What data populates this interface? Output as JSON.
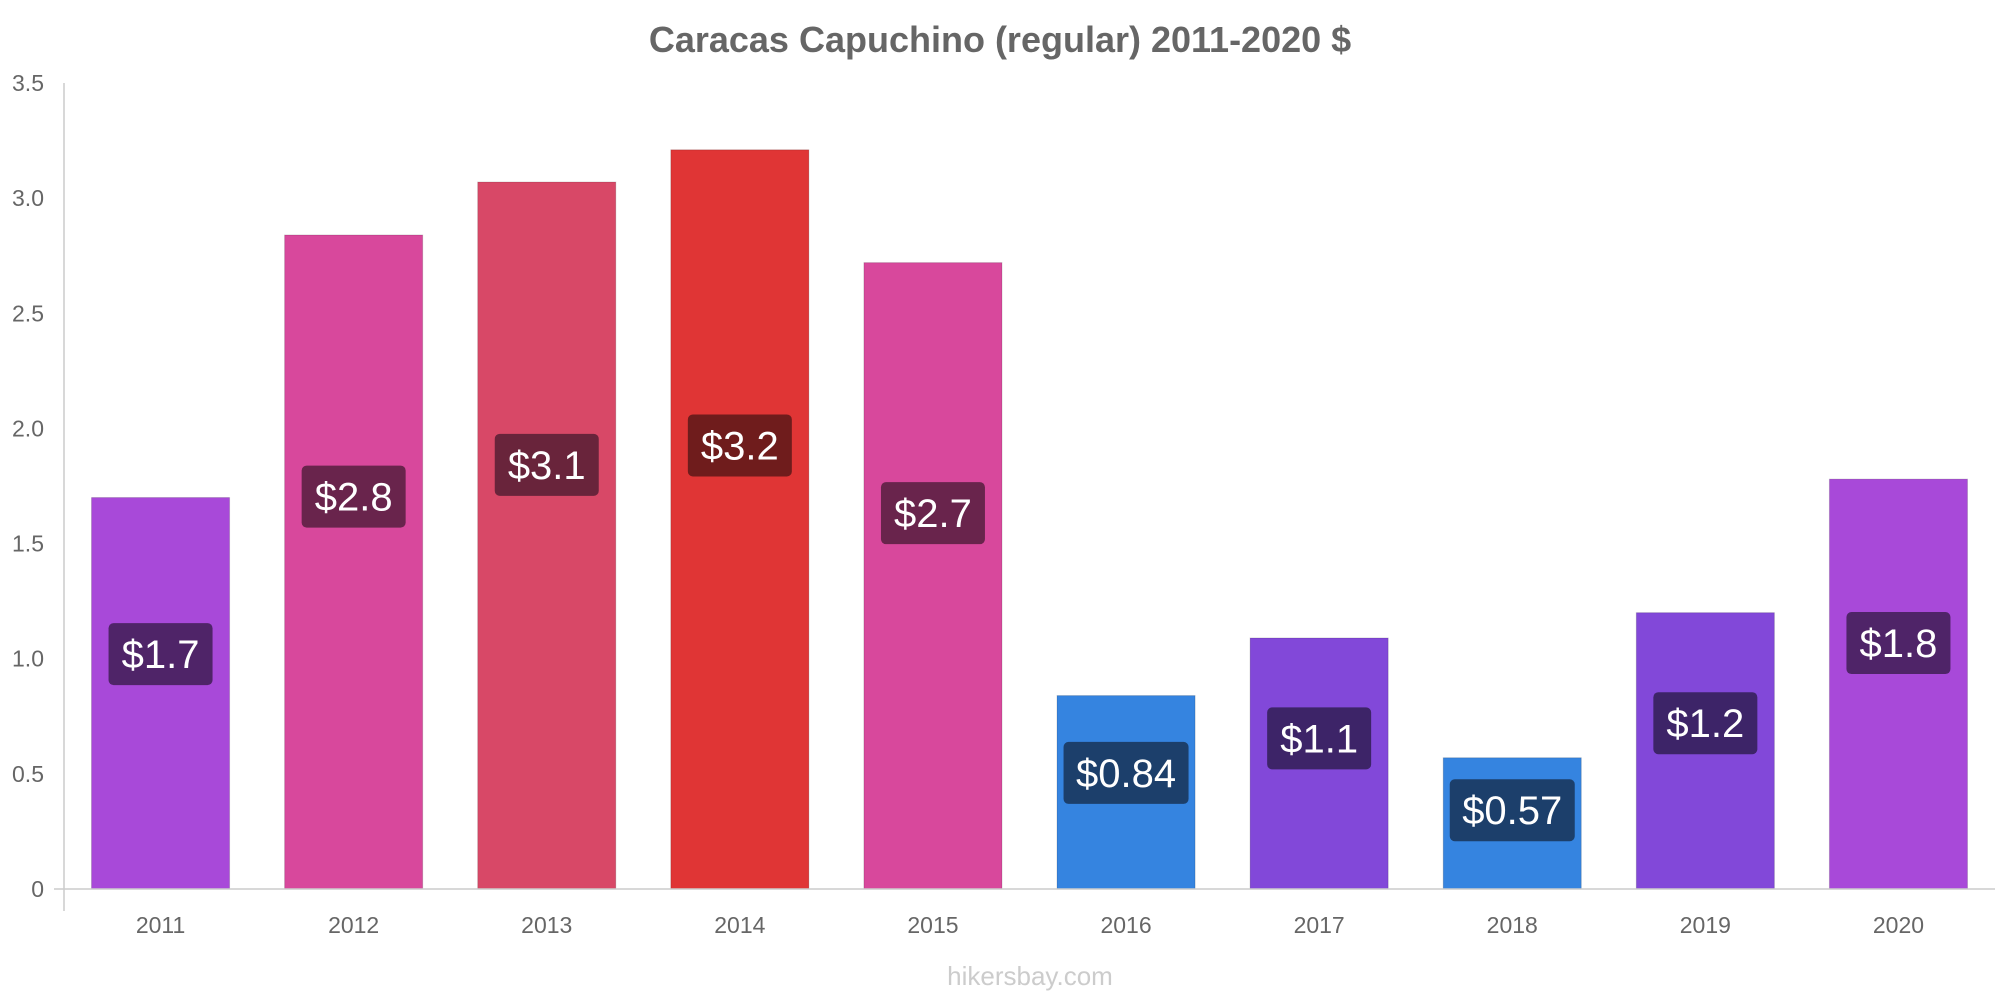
{
  "chart_data": {
    "type": "bar",
    "title": "Caracas Capuchino (regular) 2011-2020 $",
    "xlabel": "",
    "ylabel": "",
    "categories": [
      "2011",
      "2012",
      "2013",
      "2014",
      "2015",
      "2016",
      "2017",
      "2018",
      "2019",
      "2020"
    ],
    "values": [
      1.7,
      2.84,
      3.07,
      3.21,
      2.72,
      0.84,
      1.09,
      0.57,
      1.2,
      1.78
    ],
    "data_labels": [
      "$1.7",
      "$2.8",
      "$3.1",
      "$3.2",
      "$2.7",
      "$0.84",
      "$1.1",
      "$0.57",
      "$1.2",
      "$1.8"
    ],
    "ylim": [
      0,
      3.5
    ],
    "yticks": [
      0,
      0.5,
      1.0,
      1.5,
      2.0,
      2.5,
      3.0,
      3.5
    ],
    "ytick_labels": [
      "0",
      "0.5",
      "1.0",
      "1.5",
      "2.0",
      "2.5",
      "3.0",
      "3.5"
    ],
    "grid": false,
    "legend": "none",
    "bar_colors": [
      "#a849d9",
      "#d8489c",
      "#d84867",
      "#e03535",
      "#d8489c",
      "#3584e0",
      "#8248d9",
      "#3584e0",
      "#8248d9",
      "#a849d9"
    ],
    "label_box_colors": [
      "#4f2468",
      "#69244c",
      "#69243b",
      "#6f1c1c",
      "#69244c",
      "#1c3f6b",
      "#3d2468",
      "#1c3f6b",
      "#3d2468",
      "#4f2468"
    ]
  },
  "source": "hikersbay.com"
}
